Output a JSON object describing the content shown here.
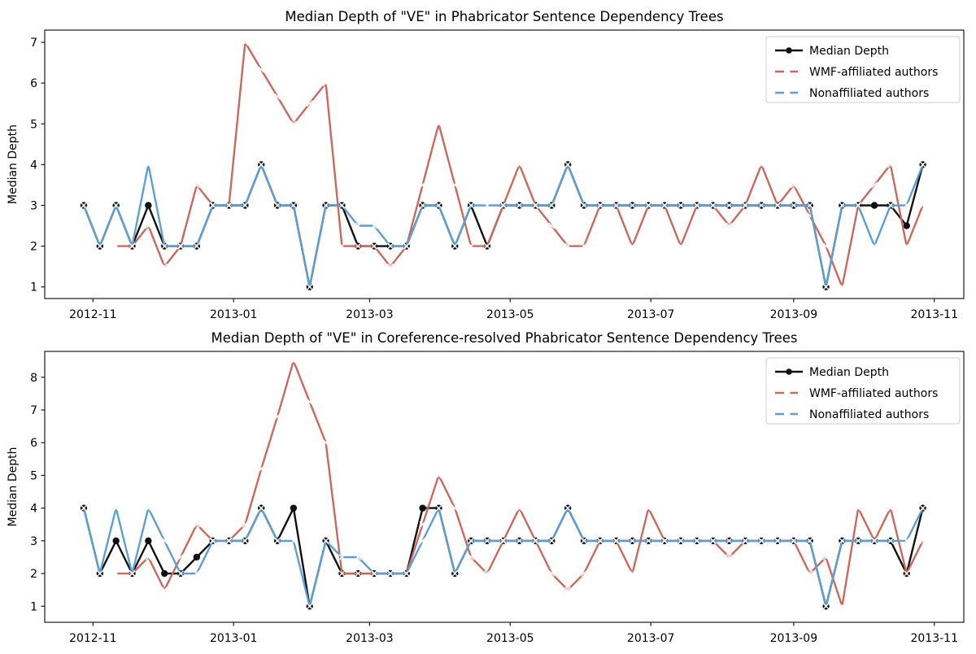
{
  "figure": {
    "background": "#ffffff"
  },
  "colors": {
    "median": "#111111",
    "wmf": "#c9695f",
    "nonaffiliated": "#5f9ed1",
    "marker_x": "rgba(255,255,255,0.85)",
    "legend_border": "#cccccc",
    "spine": "#1a1a1a"
  },
  "chart_data": [
    {
      "type": "line",
      "title": "Median Depth of \"VE\" in Phabricator Sentence Dependency Trees",
      "ylabel": "Median Depth",
      "x_start_date": "2012-10-28",
      "x_step_days": 7,
      "x_tick_labels": [
        "2012-11",
        "2013-01",
        "2013-03",
        "2013-05",
        "2013-07",
        "2013-09",
        "2013-11"
      ],
      "x_tick_day_offsets": [
        4,
        65,
        124,
        185,
        246,
        308,
        369
      ],
      "yticks": [
        1,
        2,
        3,
        4,
        5,
        6,
        7
      ],
      "ylim": [
        0.715,
        7.3
      ],
      "grid": false,
      "legend_position": "upper right",
      "legend": [
        "Median Depth",
        "WMF-affiliated authors",
        "Nonaffiliated authors"
      ],
      "series": [
        {
          "name": "Median Depth",
          "color_key": "median",
          "marker": "circle",
          "values": [
            3,
            2,
            3,
            2,
            3,
            2,
            2,
            2,
            3,
            3,
            3,
            4,
            3,
            3,
            1,
            3,
            3,
            2,
            2,
            2,
            2,
            3,
            3,
            2,
            3,
            2,
            3,
            3,
            3,
            3,
            4,
            3,
            3,
            3,
            3,
            3,
            3,
            3,
            3,
            3,
            3,
            3,
            3,
            3,
            3,
            3,
            1,
            3,
            3,
            3,
            3,
            2.5,
            4
          ]
        },
        {
          "name": "WMF-affiliated authors",
          "color_key": "wmf",
          "marker": "x",
          "values": [
            null,
            null,
            2,
            2,
            2.5,
            1.5,
            2,
            3.5,
            3,
            3,
            7,
            6.33,
            5.67,
            5,
            5.5,
            6,
            2,
            2,
            2,
            1.5,
            2,
            3.5,
            5,
            3.5,
            2,
            2,
            3,
            4,
            3,
            2.5,
            2,
            2,
            3,
            3,
            2,
            3,
            3,
            2,
            3,
            3,
            2.5,
            3,
            4,
            3,
            3.5,
            2.75,
            2,
            1,
            3,
            3.5,
            4,
            2,
            3
          ]
        },
        {
          "name": "Nonaffiliated authors",
          "color_key": "nonaffiliated",
          "marker": "x",
          "values": [
            3,
            2,
            3,
            2,
            4,
            2,
            2,
            2,
            3,
            3,
            3,
            4,
            3,
            3,
            1,
            3,
            3,
            2.5,
            2.5,
            2,
            2,
            3,
            3,
            2,
            3,
            3,
            3,
            3,
            3,
            3,
            4,
            3,
            3,
            3,
            3,
            3,
            3,
            3,
            3,
            3,
            3,
            3,
            3,
            3,
            3,
            3,
            1,
            3,
            3,
            2,
            3,
            3,
            4
          ]
        }
      ]
    },
    {
      "type": "line",
      "title": "Median Depth of \"VE\" in Coreference-resolved Phabricator Sentence Dependency Trees",
      "ylabel": "Median Depth",
      "x_start_date": "2012-10-28",
      "x_step_days": 7,
      "x_tick_labels": [
        "2012-11",
        "2013-01",
        "2013-03",
        "2013-05",
        "2013-07",
        "2013-09",
        "2013-11"
      ],
      "x_tick_day_offsets": [
        4,
        65,
        124,
        185,
        246,
        308,
        369
      ],
      "yticks": [
        1,
        2,
        3,
        4,
        5,
        6,
        7,
        8
      ],
      "ylim": [
        0.51,
        8.79
      ],
      "grid": false,
      "legend_position": "upper right",
      "legend": [
        "Median Depth",
        "WMF-affiliated authors",
        "Nonaffiliated authors"
      ],
      "series": [
        {
          "name": "Median Depth",
          "color_key": "median",
          "marker": "circle",
          "values": [
            4,
            2,
            3,
            2,
            3,
            2,
            2,
            2.5,
            3,
            3,
            3,
            4,
            3,
            4,
            1,
            3,
            2,
            2,
            2,
            2,
            2,
            4,
            4,
            2,
            3,
            3,
            3,
            3,
            3,
            3,
            4,
            3,
            3,
            3,
            3,
            3,
            3,
            3,
            3,
            3,
            3,
            3,
            3,
            3,
            3,
            3,
            1,
            3,
            3,
            3,
            3,
            2,
            4
          ]
        },
        {
          "name": "WMF-affiliated authors",
          "color_key": "wmf",
          "marker": "x",
          "values": [
            null,
            null,
            2,
            2,
            2.5,
            1.5,
            2.5,
            3.5,
            3,
            3,
            3.5,
            5.2,
            6.8,
            8.5,
            7.25,
            6,
            2,
            2,
            2,
            2,
            2,
            3.5,
            5,
            4,
            2.5,
            2,
            3,
            4,
            3,
            2,
            1.5,
            2,
            3,
            3,
            2,
            4,
            3,
            3,
            3,
            3,
            2.5,
            3,
            3,
            3,
            3,
            2,
            2.5,
            1,
            4,
            3,
            4,
            2,
            3
          ]
        },
        {
          "name": "Nonaffiliated authors",
          "color_key": "nonaffiliated",
          "marker": "x",
          "values": [
            4,
            2,
            4,
            2,
            4,
            3,
            2,
            2,
            3,
            3,
            3,
            4,
            3,
            3,
            1,
            3,
            2.5,
            2.5,
            2,
            2,
            2,
            3,
            4,
            2,
            3,
            3,
            3,
            3,
            3,
            3,
            4,
            3,
            3,
            3,
            3,
            3,
            3,
            3,
            3,
            3,
            3,
            3,
            3,
            3,
            3,
            3,
            1,
            3,
            3,
            3,
            3,
            3,
            4
          ]
        }
      ]
    }
  ]
}
